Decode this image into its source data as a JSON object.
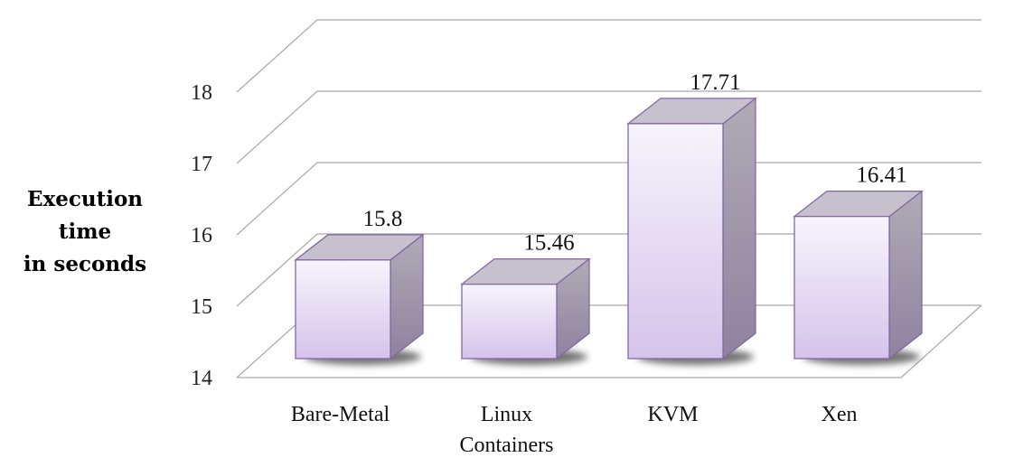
{
  "chart_data": {
    "type": "bar",
    "title": "",
    "ylabel_lines": [
      "Execution",
      "time",
      "in seconds"
    ],
    "xlabel": "",
    "categories": [
      [
        "Bare-Metal"
      ],
      [
        "Linux",
        "Containers"
      ],
      [
        "KVM"
      ],
      [
        "Xen"
      ]
    ],
    "values": [
      15.8,
      15.46,
      17.71,
      16.41
    ],
    "value_labels": [
      "15.8",
      "15.46",
      "17.71",
      "16.41"
    ],
    "ylim": [
      14,
      18.5
    ],
    "yticks": [
      14,
      15,
      16,
      17,
      18
    ],
    "grid": true,
    "style": "3d-column"
  },
  "colors": {
    "bar_front_top": "#f7f4fc",
    "bar_front_bottom": "#d4c4ea",
    "bar_top": "#c6c1cc",
    "bar_side_top": "#b0abb6",
    "bar_side_bottom": "#8f829f",
    "bar_outline": "#8468a6",
    "grid": "#a9a9a9",
    "shadow": "#000000"
  }
}
